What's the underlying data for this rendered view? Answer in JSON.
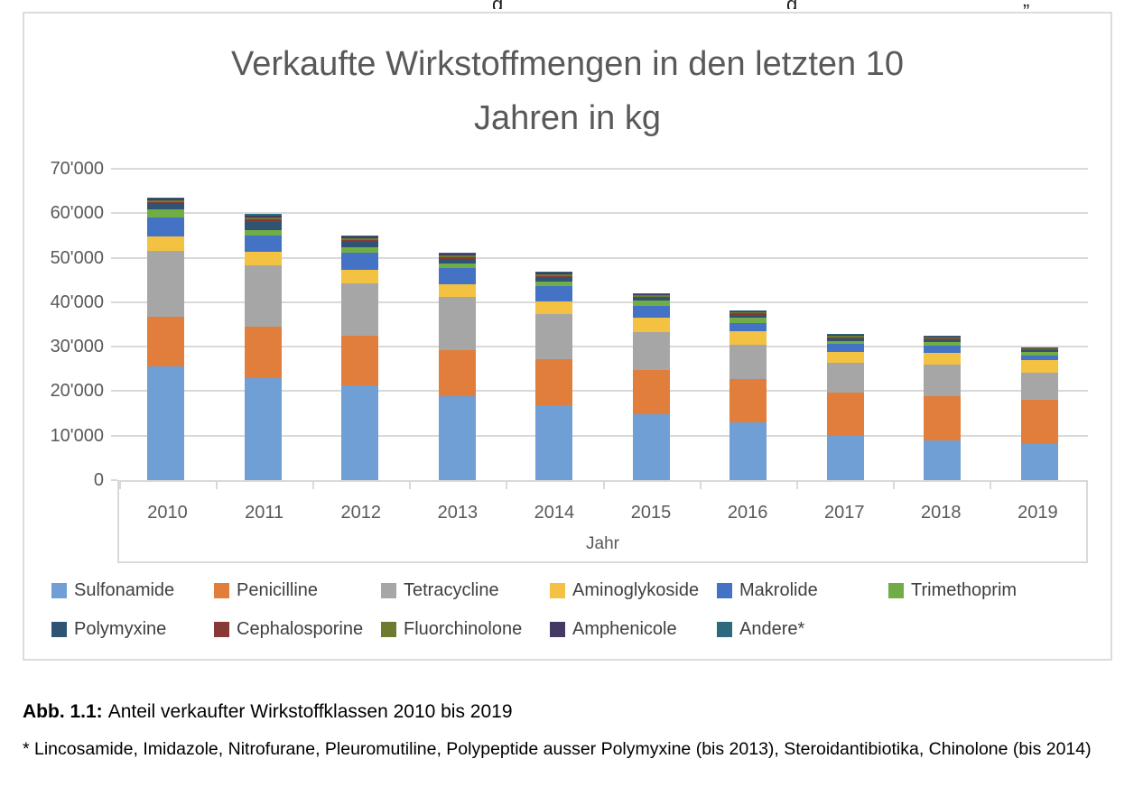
{
  "page": {
    "clipped_fragments": [
      "g",
      "g",
      "„"
    ]
  },
  "chart": {
    "title_lines": [
      "Verkaufte Wirkstoffmengen in den letzten 10",
      "Jahren in kg"
    ]
  },
  "colors": {
    "grid": "#D9D9D9",
    "box_border": "#DCDCDC",
    "title_text": "#595959",
    "axis_text": "#595959",
    "legend_text": "#404040",
    "caption_text": "#000000"
  },
  "chart_data": {
    "type": "bar",
    "stacked": true,
    "title": "Verkaufte Wirkstoffmengen in den letzten 10 Jahren in kg",
    "xlabel": "Jahr",
    "ylabel": "",
    "ylim": [
      0,
      70000
    ],
    "ytick_step": 10000,
    "ytick_labels": [
      "0",
      "10'000",
      "20'000",
      "30'000",
      "40'000",
      "50'000",
      "60'000",
      "70'000"
    ],
    "grid": true,
    "legend_position": "bottom",
    "categories": [
      "2010",
      "2011",
      "2012",
      "2013",
      "2014",
      "2015",
      "2016",
      "2017",
      "2018",
      "2019"
    ],
    "series": [
      {
        "name": "Sulfonamide",
        "color": "#6F9FD5",
        "values": [
          25500,
          23000,
          21400,
          18800,
          16800,
          14800,
          13000,
          10000,
          9000,
          8200
        ]
      },
      {
        "name": "Penicilline",
        "color": "#E17E3B",
        "values": [
          11300,
          11500,
          11000,
          10500,
          10300,
          9900,
          9700,
          9700,
          9800,
          9900
        ]
      },
      {
        "name": "Tetracycline",
        "color": "#A6A6A6",
        "values": [
          14800,
          13700,
          11900,
          11900,
          10300,
          8600,
          7800,
          6600,
          7200,
          6000
        ]
      },
      {
        "name": "Aminoglykoside",
        "color": "#F4C242",
        "values": [
          3100,
          3200,
          3000,
          2900,
          2700,
          3300,
          2900,
          2500,
          2600,
          2800
        ]
      },
      {
        "name": "Makrolide",
        "color": "#4472C4",
        "values": [
          4300,
          3600,
          3900,
          3500,
          3600,
          2600,
          2000,
          1800,
          1700,
          1200
        ]
      },
      {
        "name": "Trimethoprim",
        "color": "#70AD47",
        "values": [
          1900,
          1300,
          1200,
          1200,
          1000,
          1100,
          1200,
          600,
          700,
          800
        ]
      },
      {
        "name": "Polymyxine",
        "color": "#2F5373",
        "values": [
          1300,
          1800,
          1200,
          1000,
          800,
          700,
          600,
          600,
          500,
          400
        ]
      },
      {
        "name": "Cephalosporine",
        "color": "#873936",
        "values": [
          400,
          500,
          400,
          400,
          400,
          300,
          300,
          300,
          300,
          200
        ]
      },
      {
        "name": "Fluorchinolone",
        "color": "#6E7B2F",
        "values": [
          400,
          500,
          400,
          400,
          400,
          300,
          300,
          300,
          200,
          200
        ]
      },
      {
        "name": "Amphenicole",
        "color": "#453A64",
        "values": [
          300,
          400,
          300,
          300,
          300,
          200,
          200,
          300,
          200,
          100
        ]
      },
      {
        "name": "Andere*",
        "color": "#2E6A7D",
        "values": [
          300,
          400,
          200,
          300,
          200,
          200,
          200,
          200,
          200,
          100
        ]
      }
    ],
    "totals": [
      63600,
      59900,
      54900,
      51200,
      46800,
      42000,
      38200,
      32900,
      32400,
      29900
    ]
  },
  "caption": {
    "label": "Abb. 1.1:",
    "text": "Anteil verkaufter Wirkstoffklassen 2010 bis 2019",
    "footnote": "* Lincosamide, Imidazole, Nitrofurane, Pleuromutiline, Polypeptide ausser Polymyxine (bis 2013), Steroidantibiotika, Chinolone (bis 2014)"
  }
}
